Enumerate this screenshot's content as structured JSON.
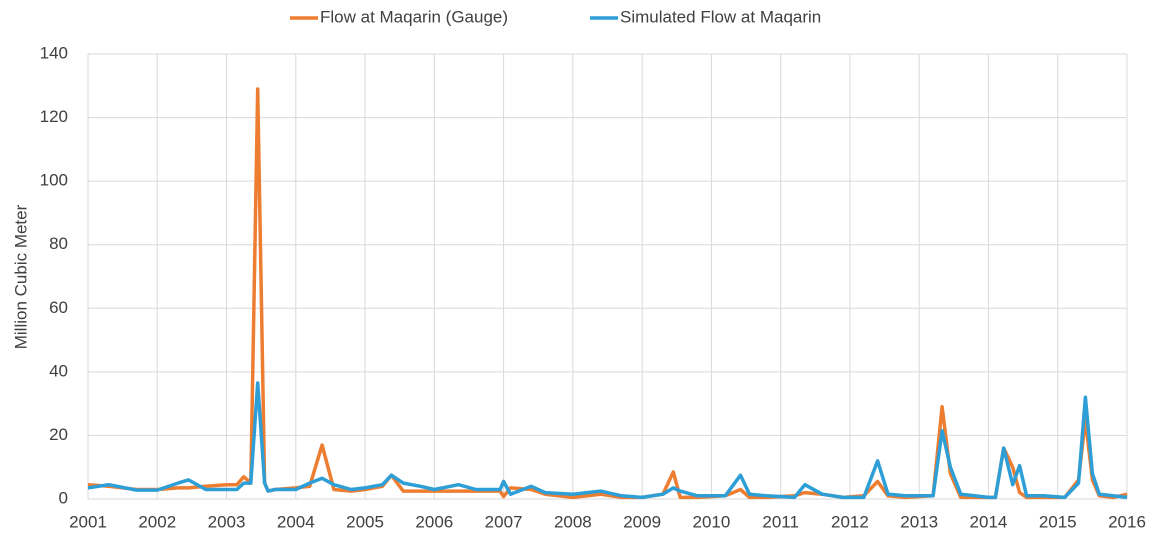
{
  "chart_data": {
    "type": "line",
    "y_label": "Million Cubic Meter",
    "x": [
      2001.0,
      2001.3,
      2001.7,
      2002.0,
      2002.3,
      2002.45,
      2002.7,
      2003.0,
      2003.15,
      2003.25,
      2003.35,
      2003.45,
      2003.55,
      2003.6,
      2003.7,
      2004.0,
      2004.2,
      2004.38,
      2004.55,
      2004.8,
      2005.0,
      2005.25,
      2005.38,
      2005.55,
      2005.8,
      2006.0,
      2006.35,
      2006.6,
      2006.95,
      2007.0,
      2007.1,
      2007.4,
      2007.6,
      2008.0,
      2008.4,
      2008.7,
      2009.0,
      2009.3,
      2009.45,
      2009.55,
      2009.8,
      2010.2,
      2010.42,
      2010.55,
      2010.8,
      2011.2,
      2011.35,
      2011.6,
      2011.9,
      2012.2,
      2012.4,
      2012.55,
      2012.8,
      2013.2,
      2013.33,
      2013.45,
      2013.6,
      2013.8,
      2014.0,
      2014.1,
      2014.22,
      2014.35,
      2014.45,
      2014.55,
      2014.8,
      2015.1,
      2015.3,
      2015.4,
      2015.5,
      2015.6,
      2015.8,
      2016.0
    ],
    "series": [
      {
        "name": "Flow at Maqarin (Gauge)",
        "color": "#ed7d31",
        "values": [
          4.5,
          4,
          3,
          3,
          3.5,
          3.5,
          4,
          4.5,
          4.5,
          7,
          5,
          129,
          5,
          2.5,
          3,
          3.5,
          4,
          17,
          3,
          2.5,
          3,
          4,
          7.5,
          2.5,
          2.5,
          2.5,
          2.5,
          2.5,
          2.5,
          0.8,
          3.5,
          3,
          1.5,
          0.5,
          1.5,
          0.5,
          0.5,
          1.5,
          8.5,
          0.5,
          0.5,
          1,
          3,
          0.5,
          0.5,
          1,
          2,
          1.5,
          0.5,
          1,
          5.5,
          1,
          0.5,
          1,
          29,
          8,
          0.5,
          0.5,
          0.5,
          0.5,
          16,
          10,
          2,
          0.5,
          0.5,
          0.5,
          6,
          25,
          6,
          1,
          0.5,
          1.5
        ]
      },
      {
        "name": "Simulated Flow at Maqarin",
        "color": "#2e9fd6",
        "values": [
          3.5,
          4.5,
          2.8,
          2.8,
          5,
          6,
          3,
          3,
          3,
          5,
          5,
          36.5,
          5,
          2.5,
          3,
          3,
          5,
          6.5,
          4.5,
          3,
          3.5,
          4.5,
          7.5,
          5,
          4,
          3,
          4.5,
          3,
          3,
          5.5,
          1.5,
          4,
          2,
          1.5,
          2.5,
          1,
          0.5,
          1.5,
          3.5,
          2.5,
          1,
          1,
          7.5,
          1.5,
          1,
          0.5,
          4.5,
          1.5,
          0.5,
          0.5,
          12,
          1.5,
          1,
          1,
          21.5,
          10,
          1.5,
          1,
          0.5,
          0.5,
          16,
          4.5,
          10.5,
          1,
          1,
          0.5,
          5,
          32,
          8,
          1.5,
          1,
          0.5
        ]
      }
    ],
    "xlim": [
      2001,
      2016
    ],
    "xticks": [
      2001,
      2002,
      2003,
      2004,
      2005,
      2006,
      2007,
      2008,
      2009,
      2010,
      2011,
      2012,
      2013,
      2014,
      2015,
      2016
    ],
    "ylim": [
      0,
      140
    ],
    "yticks": [
      0,
      20,
      40,
      60,
      80,
      100,
      120,
      140
    ],
    "grid": true,
    "legend": "top"
  }
}
